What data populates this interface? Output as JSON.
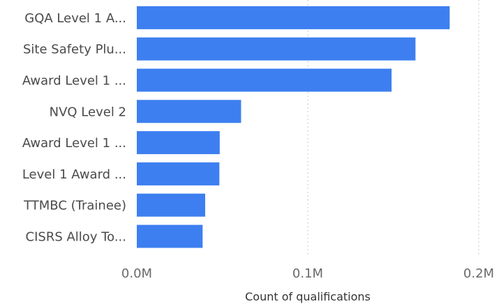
{
  "chart_data": {
    "type": "bar",
    "orientation": "horizontal",
    "categories": [
      "GQA Level 1 A...",
      "Site Safety Plu...",
      "Award Level 1 ...",
      "NVQ Level 2",
      "Award Level 1 ...",
      "Level 1 Award ...",
      "TTMBC (Trainee)",
      "CISRS Alloy To..."
    ],
    "values": [
      183000,
      163000,
      149000,
      61000,
      48500,
      48300,
      40000,
      38500
    ],
    "xlabel": "Count of qualifications",
    "ylabel": "",
    "xlim": [
      0,
      200000
    ],
    "ticks": [
      {
        "value": 0,
        "label": "0.0M"
      },
      {
        "value": 100000,
        "label": "0.1M"
      },
      {
        "value": 200000,
        "label": "0.2M"
      }
    ],
    "grid": true,
    "bar_color": "#3d7ff0"
  }
}
